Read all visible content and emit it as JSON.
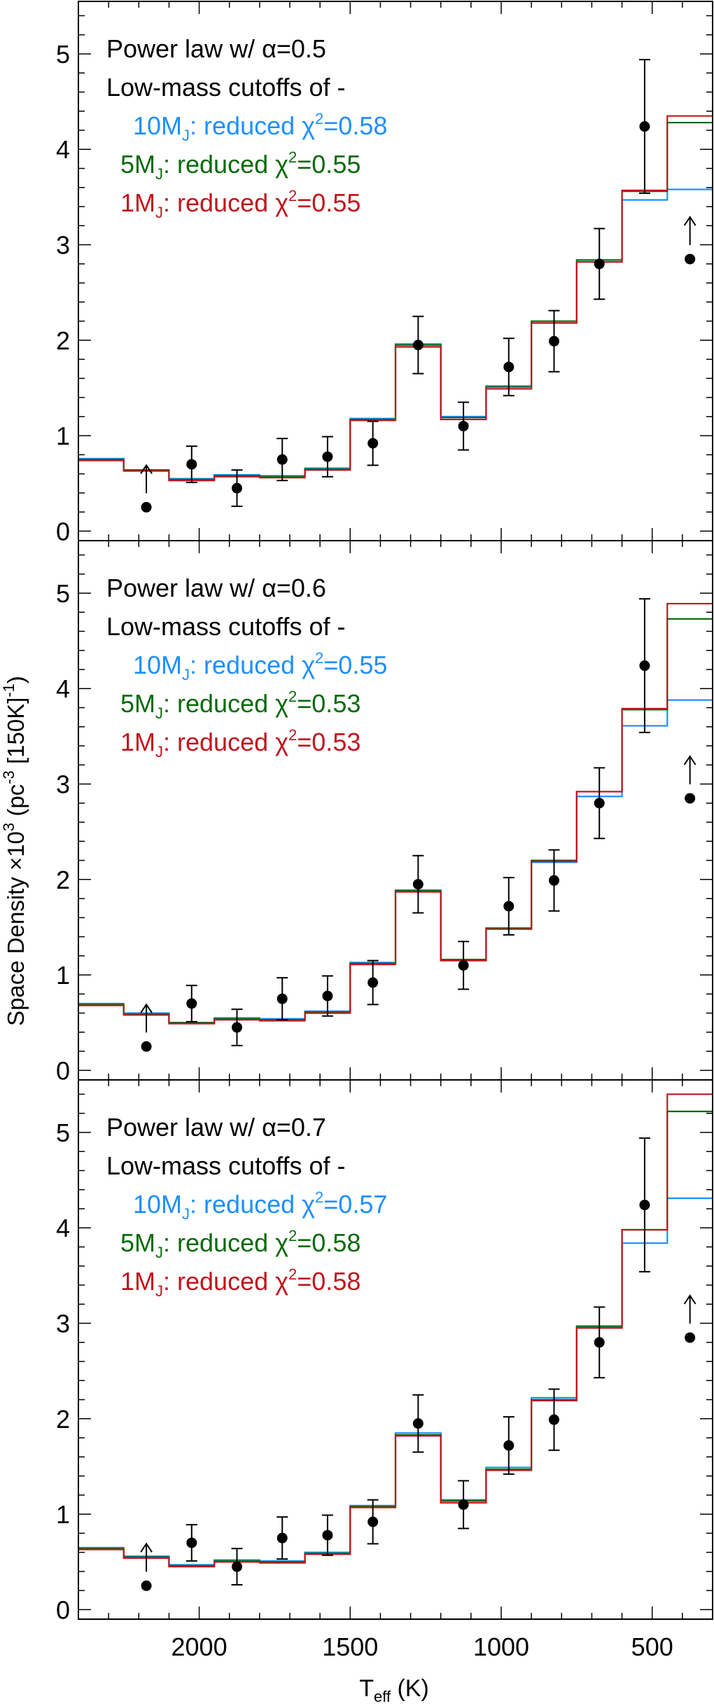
{
  "chart_data": {
    "type": "step",
    "ylabel": {
      "main": "Space Density ×10",
      "sup1": "3",
      "mid": " (pc",
      "sup2": "-3",
      "tail": " [150K]",
      "sup3": "-1",
      "end": ")"
    },
    "xlabel": {
      "main": "T",
      "sub": "eff",
      "tail": " (K)"
    },
    "xlim": [
      2400,
      300
    ],
    "ylim": [
      -0.1,
      5.55
    ],
    "x_ticks": [
      "2000",
      "1500",
      "1000",
      "500"
    ],
    "x_tick_values": [
      2000,
      1500,
      1000,
      500
    ],
    "y_ticks": [
      "0",
      "1",
      "2",
      "3",
      "4",
      "5"
    ],
    "y_tick_values": [
      0,
      1,
      2,
      3,
      4,
      5
    ],
    "bin_edges": [
      2400,
      2250,
      2100,
      1950,
      1800,
      1650,
      1500,
      1350,
      1200,
      1050,
      900,
      750,
      600,
      450,
      300
    ],
    "colors": {
      "10MJ": "#1e8fff",
      "5MJ": "#0a6a0a",
      "1MJ": "#c0161d",
      "data": "#000000"
    },
    "observed": {
      "x": [
        2175,
        2025,
        1875,
        1725,
        1575,
        1425,
        1275,
        1125,
        975,
        825,
        675,
        525,
        375
      ],
      "y": [
        0.25,
        0.7,
        0.45,
        0.75,
        0.78,
        0.92,
        1.95,
        1.1,
        1.72,
        1.99,
        2.8,
        4.24,
        2.85
      ],
      "err_low": [
        0,
        0.19,
        0.19,
        0.22,
        0.21,
        0.23,
        0.3,
        0.25,
        0.3,
        0.32,
        0.37,
        0.7,
        0
      ],
      "err_high": [
        0,
        0.19,
        0.19,
        0.22,
        0.21,
        0.23,
        0.3,
        0.25,
        0.3,
        0.32,
        0.37,
        0.7,
        0
      ],
      "lower_limit": [
        true,
        false,
        false,
        false,
        false,
        false,
        false,
        false,
        false,
        false,
        false,
        false,
        true
      ]
    },
    "panels": [
      {
        "title": "Power law w/ α=0.5",
        "subtitle": "Low-mass cutoffs of -",
        "legend": [
          {
            "mass": "10M",
            "sub": "J",
            "label": ": reduced χ",
            "sup": "2",
            "value": "=0.58",
            "color": "#1e8fff"
          },
          {
            "mass": "5M",
            "sub": "J",
            "label": ": reduced χ",
            "sup": "2",
            "value": "=0.55",
            "color": "#0a6a0a"
          },
          {
            "mass": "1M",
            "sub": "J",
            "label": ": reduced χ",
            "sup": "2",
            "value": "=0.55",
            "color": "#c0161d"
          }
        ],
        "series": [
          {
            "name": "10MJ",
            "color": "#1e8fff",
            "values": [
              0.76,
              0.64,
              0.55,
              0.59,
              0.58,
              0.66,
              1.18,
              1.96,
              1.2,
              1.52,
              2.2,
              2.84,
              3.47,
              3.58
            ]
          },
          {
            "name": "5MJ",
            "color": "#0a6a0a",
            "values": [
              0.75,
              0.64,
              0.54,
              0.58,
              0.57,
              0.65,
              1.17,
              1.95,
              1.19,
              1.51,
              2.2,
              2.84,
              3.56,
              4.28
            ]
          },
          {
            "name": "1MJ",
            "color": "#c0161d",
            "values": [
              0.74,
              0.63,
              0.53,
              0.57,
              0.56,
              0.64,
              1.16,
              1.93,
              1.17,
              1.49,
              2.18,
              2.82,
              3.57,
              4.35
            ]
          }
        ]
      },
      {
        "title": "Power law w/ α=0.6",
        "subtitle": "Low-mass cutoffs of -",
        "legend": [
          {
            "mass": "10M",
            "sub": "J",
            "label": ": reduced χ",
            "sup": "2",
            "value": "=0.55",
            "color": "#1e8fff"
          },
          {
            "mass": "5M",
            "sub": "J",
            "label": ": reduced χ",
            "sup": "2",
            "value": "=0.53",
            "color": "#0a6a0a"
          },
          {
            "mass": "1M",
            "sub": "J",
            "label": ": reduced χ",
            "sup": "2",
            "value": "=0.53",
            "color": "#c0161d"
          }
        ],
        "series": [
          {
            "name": "10MJ",
            "color": "#1e8fff",
            "values": [
              0.7,
              0.6,
              0.5,
              0.55,
              0.54,
              0.62,
              1.13,
              1.89,
              1.16,
              1.49,
              2.18,
              2.87,
              3.61,
              3.88
            ]
          },
          {
            "name": "5MJ",
            "color": "#0a6a0a",
            "values": [
              0.69,
              0.59,
              0.5,
              0.54,
              0.53,
              0.61,
              1.12,
              1.88,
              1.16,
              1.49,
              2.2,
              2.92,
              3.78,
              4.73
            ]
          },
          {
            "name": "1MJ",
            "color": "#c0161d",
            "values": [
              0.68,
              0.58,
              0.49,
              0.53,
              0.52,
              0.6,
              1.11,
              1.87,
              1.15,
              1.48,
              2.19,
              2.92,
              3.79,
              4.89
            ]
          }
        ]
      },
      {
        "title": "Power law w/ α=0.7",
        "subtitle": "Low-mass cutoffs of -",
        "legend": [
          {
            "mass": "10M",
            "sub": "J",
            "label": ": reduced χ",
            "sup": "2",
            "value": "=0.57",
            "color": "#1e8fff"
          },
          {
            "mass": "5M",
            "sub": "J",
            "label": ": reduced χ",
            "sup": "2",
            "value": "=0.58",
            "color": "#0a6a0a"
          },
          {
            "mass": "1M",
            "sub": "J",
            "label": ": reduced χ",
            "sup": "2",
            "value": "=0.58",
            "color": "#c0161d"
          }
        ],
        "series": [
          {
            "name": "10MJ",
            "color": "#1e8fff",
            "values": [
              0.65,
              0.56,
              0.47,
              0.52,
              0.51,
              0.6,
              1.09,
              1.85,
              1.15,
              1.49,
              2.22,
              2.96,
              3.84,
              4.31
            ]
          },
          {
            "name": "5MJ",
            "color": "#0a6a0a",
            "values": [
              0.64,
              0.55,
              0.46,
              0.51,
              0.5,
              0.59,
              1.08,
              1.83,
              1.14,
              1.47,
              2.2,
              2.97,
              3.98,
              5.22
            ]
          },
          {
            "name": "1MJ",
            "color": "#c0161d",
            "values": [
              0.63,
              0.54,
              0.45,
              0.5,
              0.49,
              0.58,
              1.07,
              1.82,
              1.12,
              1.46,
              2.19,
              2.95,
              3.98,
              5.4
            ]
          }
        ]
      }
    ]
  }
}
